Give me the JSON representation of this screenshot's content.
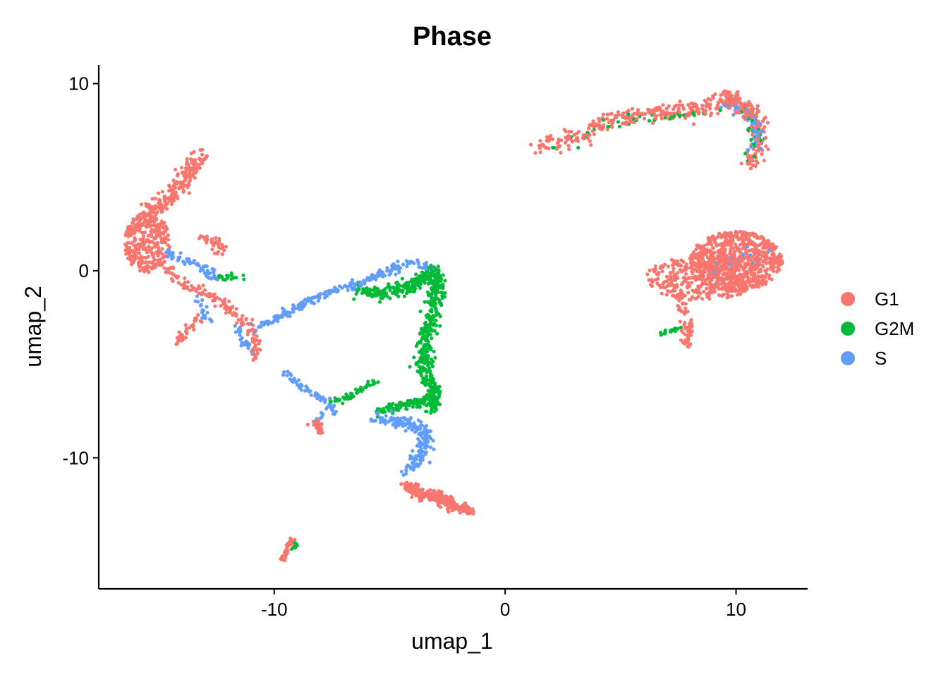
{
  "chart_data": {
    "type": "scatter",
    "title": "Phase",
    "xlabel": "umap_1",
    "ylabel": "umap_2",
    "xlim": [
      -17.6,
      13.1
    ],
    "ylim": [
      -17,
      11
    ],
    "x_ticks": [
      -10,
      0,
      10
    ],
    "x_tick_labels": [
      "-10",
      "0",
      "10"
    ],
    "y_ticks": [
      10,
      0,
      -10
    ],
    "y_tick_labels": [
      "10",
      "0",
      "-10"
    ],
    "grid": false,
    "legend_position": "right",
    "series": [
      {
        "name": "G1",
        "color": "#F8766D",
        "clusters": [
          {
            "path": [
              [
                1.5,
                6.6
              ],
              [
                3,
                7.2
              ],
              [
                4.5,
                8.0
              ],
              [
                6,
                8.4
              ],
              [
                8,
                8.5
              ],
              [
                9.5,
                9.1
              ],
              [
                10.5,
                8.8
              ],
              [
                11,
                7.8
              ],
              [
                11,
                6.8
              ],
              [
                10.7,
                5.8
              ]
            ],
            "spread": 0.45,
            "n": 380
          },
          {
            "path": [
              [
                9.3,
                9.3
              ],
              [
                9.8,
                9.0
              ],
              [
                10.3,
                8.7
              ],
              [
                10.8,
                8.3
              ]
            ],
            "spread": 0.45,
            "n": 80
          },
          {
            "center": [
              10,
              0.5
            ],
            "rx": 2.0,
            "ry": 1.6,
            "n": 700
          },
          {
            "center": [
              8.5,
              -0.4
            ],
            "rx": 2.4,
            "ry": 1.2,
            "n": 300
          },
          {
            "path": [
              [
                7.5,
                -1.0
              ],
              [
                7.7,
                -2.0
              ],
              [
                7.9,
                -3.0
              ],
              [
                7.9,
                -4.0
              ]
            ],
            "spread": 0.25,
            "n": 70
          },
          {
            "path": [
              [
                -16,
                2.3
              ],
              [
                -15.3,
                3.2
              ],
              [
                -14.5,
                4.0
              ],
              [
                -13.8,
                5.0
              ],
              [
                -13.3,
                6.2
              ]
            ],
            "spread": 0.4,
            "n": 220
          },
          {
            "center": [
              -15.5,
              1.5
            ],
            "rx": 1.0,
            "ry": 1.6,
            "n": 280
          },
          {
            "path": [
              [
                -14.8,
                0.5
              ],
              [
                -14.2,
                -0.5
              ],
              [
                -13.5,
                -1.0
              ],
              [
                -12.5,
                -1.5
              ],
              [
                -11.5,
                -2.5
              ],
              [
                -10.8,
                -3.5
              ],
              [
                -10.8,
                -4.8
              ]
            ],
            "spread": 0.25,
            "n": 150
          },
          {
            "path": [
              [
                -13.2,
                1.7
              ],
              [
                -12.5,
                1.5
              ],
              [
                -12.3,
                0.8
              ]
            ],
            "spread": 0.25,
            "n": 40
          },
          {
            "path": [
              [
                -13.3,
                -2.5
              ],
              [
                -13.8,
                -3.2
              ],
              [
                -14.3,
                -3.9
              ]
            ],
            "spread": 0.2,
            "n": 40
          },
          {
            "path": [
              [
                -8.2,
                -8.0
              ],
              [
                -8.0,
                -8.6
              ]
            ],
            "spread": 0.2,
            "n": 30
          },
          {
            "path": [
              [
                -4.3,
                -11.5
              ],
              [
                -3.8,
                -11.8
              ],
              [
                -3.0,
                -12.0
              ],
              [
                -2.2,
                -12.6
              ],
              [
                -1.5,
                -12.8
              ]
            ],
            "spread": 0.3,
            "n": 260
          },
          {
            "path": [
              [
                -9.6,
                -15.5
              ],
              [
                -9.4,
                -14.8
              ],
              [
                -9.2,
                -14.4
              ]
            ],
            "spread": 0.15,
            "n": 35
          }
        ]
      },
      {
        "name": "G2M",
        "color": "#00BA38",
        "clusters": [
          {
            "path": [
              [
                -6.5,
                -1.0
              ],
              [
                -5.5,
                -1.2
              ],
              [
                -4.5,
                -1.0
              ],
              [
                -3.5,
                -0.5
              ],
              [
                -3.0,
                0.0
              ],
              [
                -3.0,
                -1.5
              ],
              [
                -3.3,
                -3.0
              ],
              [
                -3.5,
                -4.0
              ],
              [
                -3.5,
                -5.5
              ],
              [
                -3.0,
                -6.5
              ],
              [
                -3.2,
                -7.5
              ]
            ],
            "spread": 0.35,
            "n": 600
          },
          {
            "path": [
              [
                -5.5,
                -7.5
              ],
              [
                -4.5,
                -7.2
              ],
              [
                -3.5,
                -7.0
              ],
              [
                -3.0,
                -6.5
              ]
            ],
            "spread": 0.25,
            "n": 120
          },
          {
            "path": [
              [
                -7.8,
                -7.0
              ],
              [
                -6.8,
                -6.8
              ],
              [
                -6.0,
                -6.2
              ],
              [
                -5.6,
                -5.8
              ]
            ],
            "spread": 0.15,
            "n": 50
          },
          {
            "path": [
              [
                2.0,
                6.4
              ],
              [
                4.0,
                7.8
              ],
              [
                6.0,
                8.2
              ],
              [
                8.0,
                8.3
              ],
              [
                10.2,
                8.5
              ],
              [
                11.0,
                7.2
              ],
              [
                10.5,
                6.0
              ]
            ],
            "spread": 0.3,
            "n": 60
          },
          {
            "path": [
              [
                -12.5,
                -0.3
              ],
              [
                -12.0,
                -0.3
              ],
              [
                -11.5,
                -0.4
              ]
            ],
            "spread": 0.2,
            "n": 20
          },
          {
            "path": [
              [
                6.6,
                -3.4
              ],
              [
                7.2,
                -3.2
              ],
              [
                7.7,
                -3.0
              ]
            ],
            "spread": 0.1,
            "n": 20
          },
          {
            "path": [
              [
                -9.2,
                -14.8
              ],
              [
                -9.0,
                -14.6
              ]
            ],
            "spread": 0.1,
            "n": 8
          }
        ]
      },
      {
        "name": "S",
        "color": "#619CFF",
        "clusters": [
          {
            "path": [
              [
                -10.8,
                -3.0
              ],
              [
                -9.8,
                -2.5
              ],
              [
                -8.8,
                -1.8
              ],
              [
                -7.8,
                -1.2
              ],
              [
                -6.8,
                -0.8
              ],
              [
                -6.0,
                -0.5
              ],
              [
                -5.0,
                0.0
              ],
              [
                -4.2,
                0.4
              ],
              [
                -3.3,
                0.2
              ]
            ],
            "spread": 0.22,
            "n": 220
          },
          {
            "path": [
              [
                -5.7,
                -7.8
              ],
              [
                -4.8,
                -8.0
              ],
              [
                -4.0,
                -8.3
              ],
              [
                -3.5,
                -8.5
              ],
              [
                -3.5,
                -9.5
              ],
              [
                -4.0,
                -10.3
              ],
              [
                -4.3,
                -10.8
              ]
            ],
            "spread": 0.35,
            "n": 200
          },
          {
            "path": [
              [
                -9.5,
                -5.5
              ],
              [
                -8.8,
                -6.2
              ],
              [
                -8.0,
                -6.8
              ],
              [
                -7.5,
                -7.2
              ],
              [
                -7.5,
                -7.7
              ]
            ],
            "spread": 0.2,
            "n": 60
          },
          {
            "path": [
              [
                -14.8,
                1.0
              ],
              [
                -13.8,
                0.5
              ],
              [
                -12.8,
                0.0
              ],
              [
                -12.5,
                -0.5
              ]
            ],
            "spread": 0.3,
            "n": 60
          },
          {
            "path": [
              [
                -13.3,
                -1.5
              ],
              [
                -13.0,
                -2.3
              ],
              [
                -12.8,
                -2.6
              ]
            ],
            "spread": 0.2,
            "n": 20
          },
          {
            "path": [
              [
                -11.6,
                -3.0
              ],
              [
                -11.3,
                -3.8
              ],
              [
                -10.8,
                -4.3
              ]
            ],
            "spread": 0.2,
            "n": 30
          },
          {
            "path": [
              [
                9.5,
                9.0
              ],
              [
                10.5,
                8.5
              ],
              [
                11.0,
                7.5
              ],
              [
                10.7,
                6.5
              ]
            ],
            "spread": 0.3,
            "n": 60
          },
          {
            "path": [
              [
                8.8,
                -0.5
              ],
              [
                9.5,
                0.3
              ],
              [
                10.5,
                0.8
              ],
              [
                11.2,
                0.5
              ]
            ],
            "spread": 0.4,
            "n": 25
          },
          {
            "path": [
              [
                -8.2,
                -8.1
              ],
              [
                -7.9,
                -7.6
              ]
            ],
            "spread": 0.1,
            "n": 8
          }
        ]
      }
    ]
  }
}
